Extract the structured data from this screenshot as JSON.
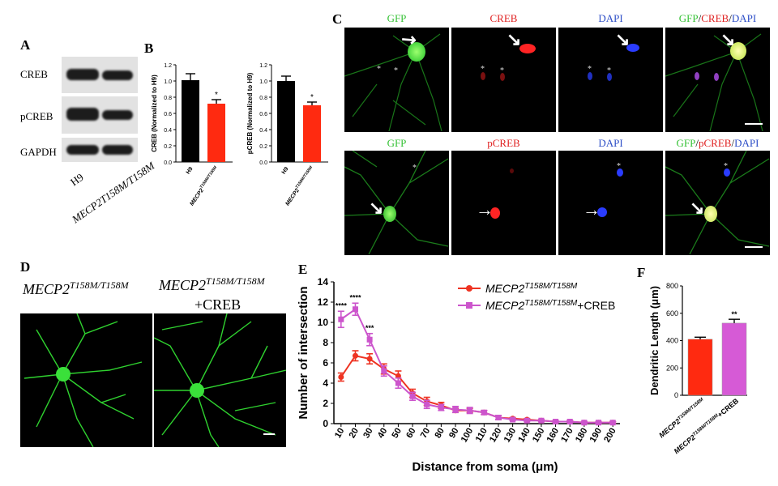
{
  "panels": {
    "A": "A",
    "B": "B",
    "C": "C",
    "D": "D",
    "E": "E",
    "F": "F"
  },
  "panel_a": {
    "rows": [
      "CREB",
      "pCREB",
      "GAPDH"
    ],
    "lanes": [
      "H9",
      "MECP2T158M/T158M"
    ]
  },
  "panel_b": [
    {
      "ylabel": "CREB (Normalized to H9)",
      "categories": [
        "H9",
        "MECP2T158M/T158M"
      ],
      "values": [
        1.01,
        0.72
      ],
      "errors": [
        0.08,
        0.05
      ],
      "colors": [
        "#000000",
        "#ff2a10"
      ],
      "ylim": [
        0,
        1.2
      ],
      "yticks": [
        "0.0",
        "0.2",
        "0.4",
        "0.6",
        "0.8",
        "1.0",
        "1.2"
      ],
      "sig": "*"
    },
    {
      "ylabel": "pCREB (Normalized to H9)",
      "categories": [
        "H9",
        "MECP2T158M/T158M"
      ],
      "values": [
        1.0,
        0.7
      ],
      "errors": [
        0.06,
        0.04
      ],
      "colors": [
        "#000000",
        "#ff2a10"
      ],
      "ylim": [
        0,
        1.2
      ],
      "yticks": [
        "0.0",
        "0.2",
        "0.4",
        "0.6",
        "0.8",
        "1.0",
        "1.2"
      ],
      "sig": "*"
    }
  ],
  "panel_c": {
    "row1": [
      {
        "parts": [
          {
            "t": "GFP",
            "c": "#36c236"
          }
        ]
      },
      {
        "parts": [
          {
            "t": "CREB",
            "c": "#e02020"
          }
        ]
      },
      {
        "parts": [
          {
            "t": "DAPI",
            "c": "#2e4fc7"
          }
        ]
      },
      {
        "parts": [
          {
            "t": "GFP",
            "c": "#36c236"
          },
          {
            "t": "/",
            "c": "#000000"
          },
          {
            "t": "CREB",
            "c": "#e02020"
          },
          {
            "t": "/",
            "c": "#000000"
          },
          {
            "t": "DAPI",
            "c": "#2e4fc7"
          }
        ]
      }
    ],
    "row2": [
      {
        "parts": [
          {
            "t": "GFP",
            "c": "#36c236"
          }
        ]
      },
      {
        "parts": [
          {
            "t": "pCREB",
            "c": "#e02020"
          }
        ]
      },
      {
        "parts": [
          {
            "t": "DAPI",
            "c": "#2e4fc7"
          }
        ]
      },
      {
        "parts": [
          {
            "t": "GFP",
            "c": "#36c236"
          },
          {
            "t": "/",
            "c": "#000000"
          },
          {
            "t": "pCREB",
            "c": "#e02020"
          },
          {
            "t": "/",
            "c": "#000000"
          },
          {
            "t": "DAPI",
            "c": "#2e4fc7"
          }
        ]
      }
    ]
  },
  "panel_d": {
    "left_label_main": "MECP2",
    "left_label_sup": "T158M/T158M",
    "right_label_main": "MECP2",
    "right_label_sup": "T158M/T158M",
    "right_label_extra": "+CREB"
  },
  "chart_data": [
    {
      "type": "line",
      "xlabel": "Distance from soma (μm)",
      "ylabel": "Number of intersection",
      "x": [
        10,
        20,
        30,
        40,
        50,
        60,
        70,
        80,
        90,
        100,
        110,
        120,
        130,
        140,
        150,
        160,
        170,
        180,
        190,
        200
      ],
      "xlim": [
        5,
        205
      ],
      "ylim": [
        0,
        14
      ],
      "yticks": [
        0,
        2,
        4,
        6,
        8,
        10,
        12,
        14
      ],
      "series": [
        {
          "name_main": "MECP2",
          "name_sup": "T158M/T158M",
          "name_extra": "",
          "color": "#ee3322",
          "marker": "circle",
          "values": [
            4.6,
            6.7,
            6.4,
            5.4,
            4.7,
            3.0,
            2.2,
            1.8,
            1.3,
            1.3,
            1.1,
            0.6,
            0.5,
            0.4,
            0.3,
            0.2,
            0.2,
            0.1,
            0.1,
            0.1
          ],
          "errors": [
            0.4,
            0.5,
            0.5,
            0.5,
            0.5,
            0.4,
            0.4,
            0.3,
            0.2,
            0.2,
            0.2,
            0.2,
            0.1,
            0.1,
            0.1,
            0.1,
            0.1,
            0.1,
            0.1,
            0.1
          ]
        },
        {
          "name_main": "MECP2",
          "name_sup": "T158M/T158M",
          "name_extra": "+CREB",
          "color": "#cc55cc",
          "marker": "square",
          "values": [
            10.3,
            11.3,
            8.3,
            5.2,
            4.0,
            2.7,
            1.9,
            1.6,
            1.4,
            1.3,
            1.1,
            0.6,
            0.4,
            0.3,
            0.3,
            0.2,
            0.2,
            0.1,
            0.1,
            0.1
          ],
          "errors": [
            0.8,
            0.6,
            0.6,
            0.5,
            0.5,
            0.4,
            0.4,
            0.3,
            0.3,
            0.3,
            0.2,
            0.2,
            0.1,
            0.1,
            0.1,
            0.1,
            0.1,
            0.1,
            0.1,
            0.1
          ]
        }
      ],
      "annotations": [
        {
          "x": 10,
          "text": "****"
        },
        {
          "x": 20,
          "text": "****"
        },
        {
          "x": 30,
          "text": "***"
        }
      ]
    },
    {
      "type": "bar",
      "ylabel": "Dendritic Length (μm)",
      "categories": [
        {
          "main": "MECP2",
          "sup": "T158M/T158M",
          "extra": ""
        },
        {
          "main": "MECP2",
          "sup": "T158M/T158M",
          "extra": "+CREB"
        }
      ],
      "values": [
        410,
        528
      ],
      "errors": [
        15,
        28
      ],
      "colors": [
        "#ff2a10",
        "#d65ad6"
      ],
      "ylim": [
        0,
        800
      ],
      "yticks": [
        0,
        200,
        400,
        600,
        800
      ],
      "annotations": [
        "",
        "**"
      ]
    }
  ]
}
